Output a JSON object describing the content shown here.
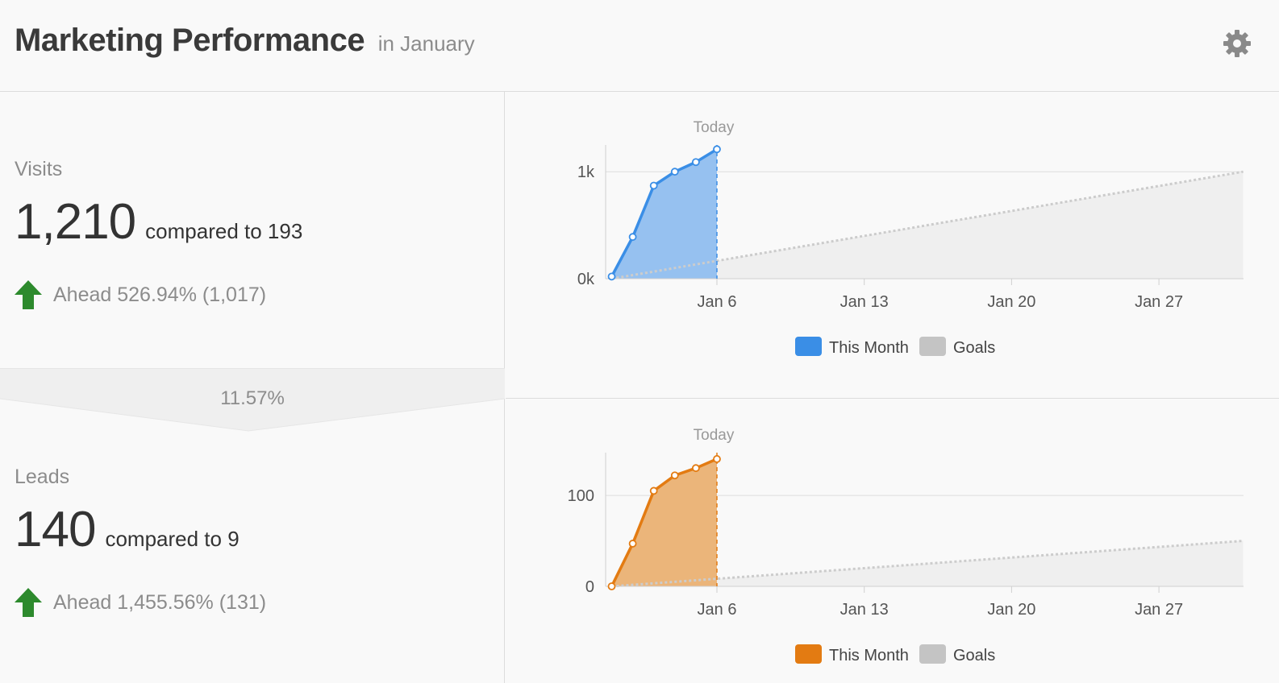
{
  "header": {
    "title": "Marketing Performance",
    "subtitle": "in January",
    "settings_icon": "gear-icon"
  },
  "visits": {
    "label": "Visits",
    "value": "1,210",
    "compare": "compared to 193",
    "status": "Ahead 526.94% (1,017)",
    "status_icon": "arrow-up-icon"
  },
  "conversion": {
    "rate": "11.57%"
  },
  "leads": {
    "label": "Leads",
    "value": "140",
    "compare": "compared to 9",
    "status": "Ahead 1,455.56% (131)",
    "status_icon": "arrow-up-icon"
  },
  "colors": {
    "visits_line": "#3a8ee6",
    "visits_fill": "#96c1f0",
    "leads_line": "#e37b12",
    "leads_fill": "#ebb57a",
    "goal_fill": "#efefef",
    "goal_line": "#cccccc",
    "legend_goal": "#c4c4c4",
    "status_up": "#2d8a2d"
  },
  "chart_data": [
    {
      "type": "area",
      "name": "visits-chart",
      "today_label": "Today",
      "x_ticks": [
        {
          "day": 6,
          "label": "Jan 6"
        },
        {
          "day": 13,
          "label": "Jan 13"
        },
        {
          "day": 20,
          "label": "Jan 20"
        },
        {
          "day": 27,
          "label": "Jan 27"
        }
      ],
      "y_ticks": [
        {
          "value": 0,
          "label": "0k"
        },
        {
          "value": 1000,
          "label": "1k"
        }
      ],
      "xlim": [
        1,
        31
      ],
      "ylim": [
        0,
        1250
      ],
      "today_day": 6,
      "series": [
        {
          "name": "This Month",
          "x": [
            1,
            2,
            3,
            4,
            5,
            6
          ],
          "y": [
            20,
            390,
            870,
            1000,
            1090,
            1210
          ]
        },
        {
          "name": "Goals",
          "x": [
            1,
            31
          ],
          "y": [
            0,
            1000
          ]
        }
      ],
      "legend": [
        "This Month",
        "Goals"
      ]
    },
    {
      "type": "area",
      "name": "leads-chart",
      "today_label": "Today",
      "x_ticks": [
        {
          "day": 6,
          "label": "Jan 6"
        },
        {
          "day": 13,
          "label": "Jan 13"
        },
        {
          "day": 20,
          "label": "Jan 20"
        },
        {
          "day": 27,
          "label": "Jan 27"
        }
      ],
      "y_ticks": [
        {
          "value": 0,
          "label": "0"
        },
        {
          "value": 100,
          "label": "100"
        }
      ],
      "xlim": [
        1,
        31
      ],
      "ylim": [
        0,
        147
      ],
      "today_day": 6,
      "series": [
        {
          "name": "This Month",
          "x": [
            1,
            2,
            3,
            4,
            5,
            6
          ],
          "y": [
            0,
            47,
            105,
            122,
            130,
            140
          ]
        },
        {
          "name": "Goals",
          "x": [
            1,
            31
          ],
          "y": [
            0,
            50
          ]
        }
      ],
      "legend": [
        "This Month",
        "Goals"
      ]
    }
  ]
}
